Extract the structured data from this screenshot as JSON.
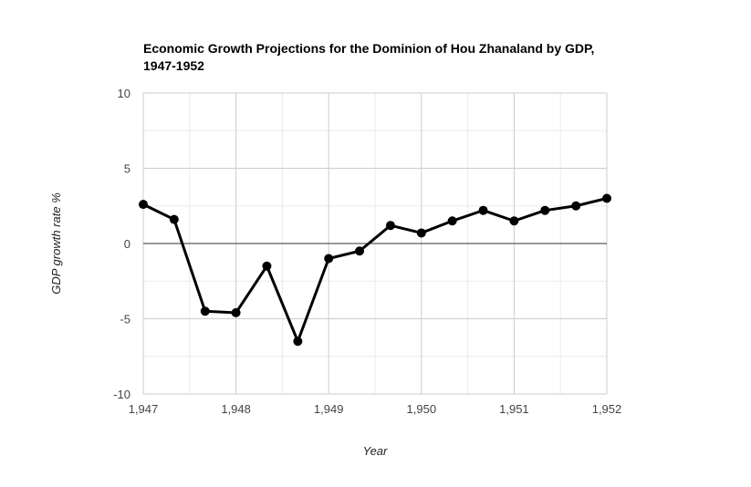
{
  "chart_data": {
    "type": "line",
    "title_lines": [
      "Economic Growth Projections for the Dominion of Hou Zhanaland by GDP,",
      "1947-1952"
    ],
    "xlabel": "Year",
    "ylabel": "GDP growth rate %",
    "xlim": [
      1947,
      1952
    ],
    "ylim": [
      -10,
      10
    ],
    "x_ticks": [
      1947,
      1948,
      1949,
      1950,
      1951,
      1952
    ],
    "x_tick_labels": [
      "1,947",
      "1,948",
      "1,949",
      "1,950",
      "1,951",
      "1,952"
    ],
    "y_ticks": [
      10,
      5,
      0,
      -5,
      -10
    ],
    "y_tick_labels": [
      "10",
      "5",
      "0",
      "-5",
      "-10"
    ],
    "grid": true,
    "legend": "none",
    "series": [
      {
        "name": "GDP growth rate %",
        "color": "#000000",
        "x": [
          1947,
          1947.333,
          1947.667,
          1948,
          1948.333,
          1948.667,
          1949,
          1949.333,
          1949.667,
          1950,
          1950.333,
          1950.667,
          1951,
          1951.333,
          1951.667,
          1952
        ],
        "values": [
          2.6,
          1.6,
          -4.5,
          -4.6,
          -1.5,
          -6.5,
          -1.0,
          -0.5,
          1.2,
          0.7,
          1.5,
          2.2,
          1.5,
          2.2,
          2.5,
          3.0
        ]
      }
    ]
  }
}
